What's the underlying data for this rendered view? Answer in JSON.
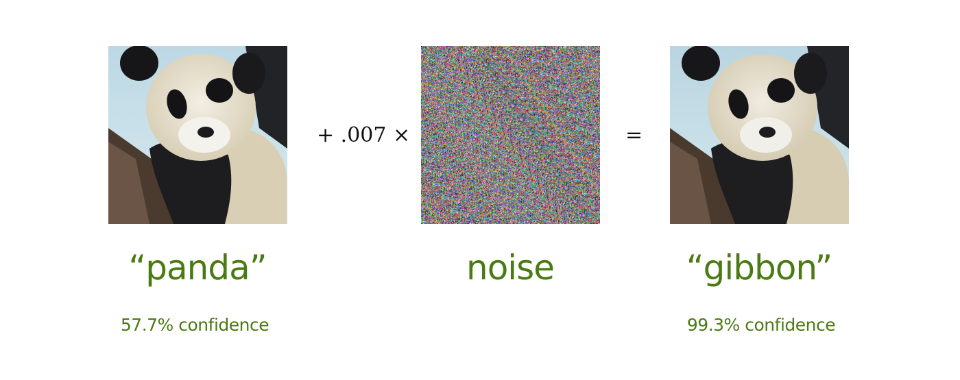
{
  "left": {
    "label": "“panda”",
    "confidence": "57.7% confidence"
  },
  "operator_plus": "+ .007 ×",
  "middle": {
    "label": "noise"
  },
  "operator_equals": "=",
  "right": {
    "label": "“gibbon”",
    "confidence": "99.3% confidence"
  },
  "colors": {
    "label_green": "#4a7a12",
    "operator_black": "#111111"
  },
  "images": {
    "left": "panda-photo",
    "middle": "noise-pattern",
    "right": "panda-photo-perturbed"
  }
}
